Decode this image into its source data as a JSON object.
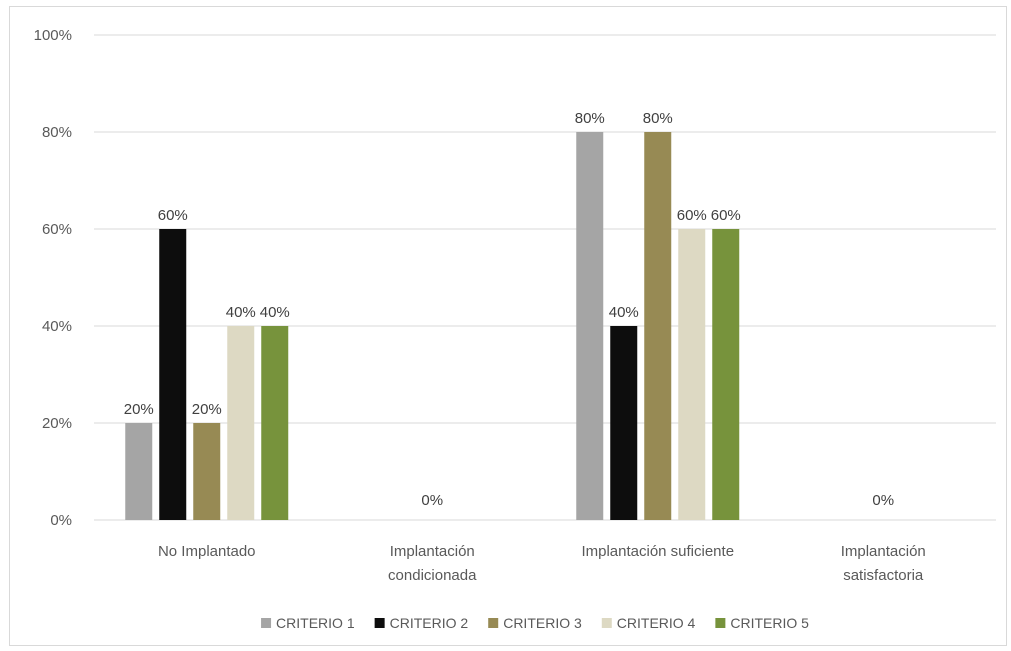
{
  "chart_data": {
    "type": "bar",
    "categories": [
      [
        "No Implantado"
      ],
      [
        "Implantación",
        "condicionada"
      ],
      [
        "Implantación suficiente"
      ],
      [
        "Implantación",
        "satisfactoria"
      ]
    ],
    "series": [
      {
        "name": "CRITERIO 1",
        "color": "#a5a5a5",
        "values": [
          20,
          0,
          80,
          0
        ]
      },
      {
        "name": "CRITERIO 2",
        "color": "#0d0d0d",
        "values": [
          60,
          0,
          40,
          0
        ]
      },
      {
        "name": "CRITERIO 3",
        "color": "#978a54",
        "values": [
          20,
          0,
          80,
          0
        ]
      },
      {
        "name": "CRITERIO 4",
        "color": "#ddd9c3",
        "values": [
          40,
          0,
          60,
          0
        ]
      },
      {
        "name": "CRITERIO 5",
        "color": "#77933c",
        "values": [
          40,
          0,
          60,
          0
        ]
      }
    ],
    "category_labels": [
      null,
      "0%",
      null,
      "0%"
    ],
    "ylim": [
      0,
      100
    ],
    "yticks": [
      "0%",
      "20%",
      "40%",
      "60%",
      "80%",
      "100%"
    ],
    "grid": true,
    "legend_position": "bottom",
    "title": "",
    "xlabel": "",
    "ylabel": ""
  }
}
